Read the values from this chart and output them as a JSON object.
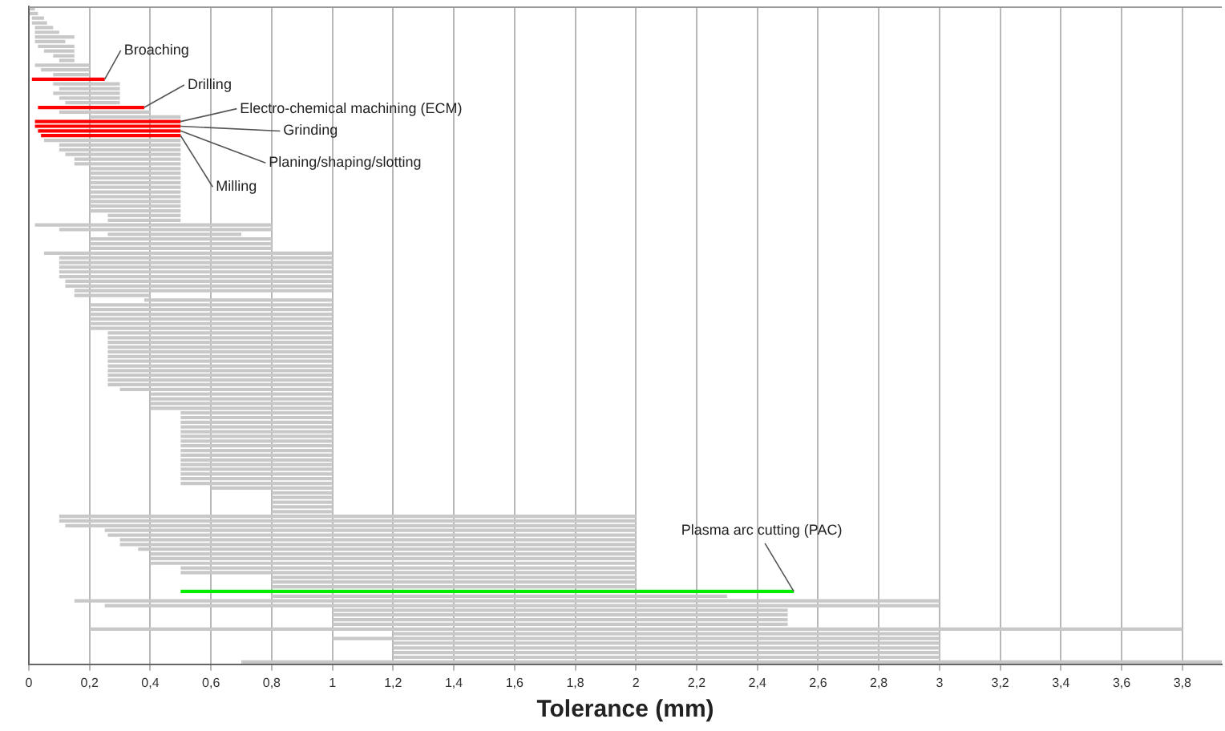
{
  "chart_data": {
    "type": "bar",
    "orientation": "horizontal",
    "xlabel": "Tolerance (mm)",
    "categories": [
      null,
      null,
      null,
      null,
      null,
      null,
      null,
      null,
      null,
      null,
      null,
      null,
      null,
      null,
      null,
      null,
      null,
      null,
      null,
      null,
      null,
      null,
      null,
      null,
      null,
      null,
      null,
      null,
      null,
      null,
      null,
      null,
      null,
      null,
      null,
      null,
      null,
      null,
      null,
      null,
      null,
      null,
      null,
      null,
      null,
      null,
      null,
      null,
      null,
      null,
      null,
      null,
      null,
      null,
      null,
      null,
      null,
      null,
      null,
      null,
      null,
      null,
      null,
      null,
      null,
      null,
      null,
      null,
      null,
      null,
      null,
      null,
      null,
      null,
      null,
      null,
      null,
      null,
      null,
      null,
      null,
      null,
      null,
      null,
      null,
      null,
      null,
      null,
      null,
      null,
      null,
      null,
      null,
      null,
      null,
      null,
      null,
      null,
      null,
      null,
      null,
      null,
      null,
      null,
      null,
      null,
      null,
      null,
      null,
      null,
      null,
      null,
      null,
      null,
      null,
      null,
      null,
      null,
      null,
      null,
      null,
      null,
      null,
      null,
      null,
      null,
      null,
      null,
      null,
      null,
      null,
      null,
      null,
      null,
      null,
      null,
      null,
      null,
      null,
      null
    ],
    "series": [
      {
        "color": "#c8c8c8",
        "base": [
          0,
          0,
          0.01,
          0.01,
          0.02,
          0.02,
          0.02,
          0.02,
          0.03,
          0.05,
          0.08,
          0.1,
          0.02,
          0.04,
          0.08,
          null,
          0.08,
          0.1,
          0.08,
          0.1,
          0.12,
          null,
          0.1,
          0.2,
          null,
          null,
          null,
          null,
          0.05,
          0.1,
          0.1,
          0.12,
          0.15,
          0.15,
          0.2,
          0.2,
          0.2,
          0.2,
          0.2,
          0.2,
          0.2,
          0.2,
          0.2,
          0.2,
          0.26,
          0.26,
          0.02,
          0.1,
          0.26,
          0.2,
          0.2,
          0.2,
          0.05,
          0.1,
          0.1,
          0.1,
          0.1,
          0.1,
          0.12,
          0.12,
          0.15,
          0.15,
          0.38,
          0.2,
          0.2,
          0.2,
          0.2,
          0.2,
          0.2,
          0.26,
          0.26,
          0.26,
          0.26,
          0.26,
          0.26,
          0.26,
          0.26,
          0.26,
          0.26,
          0.26,
          0.26,
          0.3,
          0.4,
          0.4,
          0.4,
          0.4,
          0.5,
          0.5,
          0.5,
          0.5,
          0.5,
          0.5,
          0.5,
          0.5,
          0.5,
          0.5,
          0.5,
          0.5,
          0.5,
          0.5,
          0.5,
          0.5,
          0.6,
          0.8,
          0.8,
          0.8,
          0.8,
          0.8,
          0.1,
          0.1,
          0.12,
          0.25,
          0.26,
          0.3,
          0.3,
          0.36,
          0.4,
          0.4,
          0.4,
          0.5,
          0.5,
          0.8,
          0.8,
          0.8,
          null,
          0.8,
          0.15,
          0.25,
          1,
          1,
          1,
          1,
          0.2,
          1.2,
          1,
          1.2,
          1.2,
          1.2,
          1.2,
          0.7
        ],
        "values": [
          0.02,
          0.03,
          0.04,
          0.05,
          0.06,
          0.08,
          0.13,
          0.1,
          0.12,
          0.1,
          0.07,
          0.05,
          0.18,
          0.16,
          0.12,
          null,
          0.22,
          0.2,
          0.22,
          0.2,
          0.18,
          null,
          0.3,
          0.3,
          null,
          null,
          null,
          null,
          0.45,
          0.4,
          0.4,
          0.38,
          0.35,
          0.35,
          0.3,
          0.3,
          0.3,
          0.3,
          0.3,
          0.3,
          0.3,
          0.3,
          0.3,
          0.3,
          0.24,
          0.24,
          0.78,
          0.7,
          0.44,
          0.6,
          0.6,
          0.6,
          0.95,
          0.9,
          0.9,
          0.9,
          0.9,
          0.9,
          0.88,
          0.88,
          0.85,
          0.25,
          0.62,
          0.8,
          0.8,
          0.8,
          0.8,
          0.8,
          0.8,
          0.74,
          0.74,
          0.74,
          0.74,
          0.74,
          0.74,
          0.74,
          0.74,
          0.74,
          0.74,
          0.74,
          0.74,
          0.7,
          0.6,
          0.6,
          0.6,
          0.6,
          0.5,
          0.5,
          0.5,
          0.5,
          0.5,
          0.5,
          0.5,
          0.5,
          0.5,
          0.5,
          0.5,
          0.5,
          0.5,
          0.5,
          0.5,
          0.5,
          0.4,
          0.2,
          0.2,
          0.2,
          0.2,
          0.2,
          1.9,
          1.9,
          1.88,
          1.75,
          1.74,
          1.7,
          1.7,
          1.64,
          1.6,
          1.6,
          1.6,
          1.5,
          1.5,
          1.2,
          1.2,
          1.2,
          null,
          1.5,
          2.85,
          2.75,
          1.5,
          1.5,
          1.5,
          1.5,
          3.6,
          1.8,
          2,
          1.8,
          1.8,
          1.8,
          1.8,
          3.23
        ]
      },
      {
        "name": "Broaching",
        "color": "#ff0000",
        "base": [
          null,
          null,
          null,
          null,
          null,
          null,
          null,
          null,
          null,
          null,
          null,
          null,
          null,
          null,
          null,
          0.01,
          null,
          null,
          null,
          null,
          null,
          null,
          null,
          null,
          null,
          null,
          null,
          null,
          null,
          null,
          null,
          null,
          null,
          null,
          null,
          null,
          null,
          null,
          null,
          null,
          null,
          null,
          null,
          null,
          null,
          null,
          null,
          null,
          null,
          null,
          null,
          null,
          null,
          null,
          null,
          null,
          null,
          null,
          null,
          null,
          null,
          null,
          null,
          null,
          null,
          null,
          null,
          null,
          null,
          null,
          null,
          null,
          null,
          null,
          null,
          null,
          null,
          null,
          null,
          null,
          null,
          null,
          null,
          null,
          null,
          null,
          null,
          null,
          null,
          null,
          null,
          null,
          null,
          null,
          null,
          null,
          null,
          null,
          null,
          null,
          null,
          null,
          null,
          null,
          null,
          null,
          null,
          null,
          null,
          null,
          null,
          null,
          null,
          null,
          null,
          null,
          null,
          null,
          null,
          null,
          null,
          null,
          null,
          null,
          null,
          null,
          null,
          null,
          null,
          null,
          null,
          null,
          null,
          null,
          null,
          null,
          null,
          null,
          null,
          null
        ],
        "values": [
          null,
          null,
          null,
          null,
          null,
          null,
          null,
          null,
          null,
          null,
          null,
          null,
          null,
          null,
          null,
          0.24,
          null,
          null,
          null,
          null,
          null,
          null,
          null,
          null,
          null,
          null,
          null,
          null,
          null,
          null,
          null,
          null,
          null,
          null,
          null,
          null,
          null,
          null,
          null,
          null,
          null,
          null,
          null,
          null,
          null,
          null,
          null,
          null,
          null,
          null,
          null,
          null,
          null,
          null,
          null,
          null,
          null,
          null,
          null,
          null,
          null,
          null,
          null,
          null,
          null,
          null,
          null,
          null,
          null,
          null,
          null,
          null,
          null,
          null,
          null,
          null,
          null,
          null,
          null,
          null,
          null,
          null,
          null,
          null,
          null,
          null,
          null,
          null,
          null,
          null,
          null,
          null,
          null,
          null,
          null,
          null,
          null,
          null,
          null,
          null,
          null,
          null,
          null,
          null,
          null,
          null,
          null,
          null,
          null,
          null,
          null,
          null,
          null,
          null,
          null,
          null,
          null,
          null,
          null,
          null,
          null,
          null,
          null,
          null,
          null,
          null,
          null,
          null,
          null,
          null,
          null,
          null,
          null,
          null,
          null,
          null,
          null,
          null,
          null,
          null
        ]
      },
      {
        "name": "Drilling",
        "color": "#ff0000",
        "base": [
          null,
          null,
          null,
          null,
          null,
          null,
          null,
          null,
          null,
          null,
          null,
          null,
          null,
          null,
          null,
          null,
          null,
          null,
          null,
          null,
          null,
          0.03,
          null,
          null,
          null,
          null,
          null,
          null,
          null,
          null,
          null,
          null,
          null,
          null,
          null,
          null,
          null,
          null,
          null,
          null,
          null,
          null,
          null,
          null,
          null,
          null,
          null,
          null,
          null,
          null,
          null,
          null,
          null,
          null,
          null,
          null,
          null,
          null,
          null,
          null,
          null,
          null,
          null,
          null,
          null,
          null,
          null,
          null,
          null,
          null,
          null,
          null,
          null,
          null,
          null,
          null,
          null,
          null,
          null,
          null,
          null,
          null,
          null,
          null,
          null,
          null,
          null,
          null,
          null,
          null,
          null,
          null,
          null,
          null,
          null,
          null,
          null,
          null,
          null,
          null,
          null,
          null,
          null,
          null,
          null,
          null,
          null,
          null,
          null,
          null,
          null,
          null,
          null,
          null,
          null,
          null,
          null,
          null,
          null,
          null,
          null,
          null,
          null,
          null,
          null,
          null,
          null,
          null,
          null,
          null,
          null,
          null,
          null,
          null,
          null,
          null,
          null,
          null,
          null,
          null
        ],
        "values": [
          null,
          null,
          null,
          null,
          null,
          null,
          null,
          null,
          null,
          null,
          null,
          null,
          null,
          null,
          null,
          null,
          null,
          null,
          null,
          null,
          null,
          0.35,
          null,
          null,
          null,
          null,
          null,
          null,
          null,
          null,
          null,
          null,
          null,
          null,
          null,
          null,
          null,
          null,
          null,
          null,
          null,
          null,
          null,
          null,
          null,
          null,
          null,
          null,
          null,
          null,
          null,
          null,
          null,
          null,
          null,
          null,
          null,
          null,
          null,
          null,
          null,
          null,
          null,
          null,
          null,
          null,
          null,
          null,
          null,
          null,
          null,
          null,
          null,
          null,
          null,
          null,
          null,
          null,
          null,
          null,
          null,
          null,
          null,
          null,
          null,
          null,
          null,
          null,
          null,
          null,
          null,
          null,
          null,
          null,
          null,
          null,
          null,
          null,
          null,
          null,
          null,
          null,
          null,
          null,
          null,
          null,
          null,
          null,
          null,
          null,
          null,
          null,
          null,
          null,
          null,
          null,
          null,
          null,
          null,
          null,
          null,
          null,
          null,
          null,
          null,
          null,
          null,
          null,
          null,
          null,
          null,
          null,
          null,
          null,
          null,
          null,
          null,
          null,
          null,
          null
        ]
      },
      {
        "name": "Electro-chemical machining (ECM)",
        "color": "#ff0000",
        "base": [
          null,
          null,
          null,
          null,
          null,
          null,
          null,
          null,
          null,
          null,
          null,
          null,
          null,
          null,
          null,
          null,
          null,
          null,
          null,
          null,
          null,
          null,
          null,
          null,
          0.02,
          null,
          null,
          null,
          null,
          null,
          null,
          null,
          null,
          null,
          null,
          null,
          null,
          null,
          null,
          null,
          null,
          null,
          null,
          null,
          null,
          null,
          null,
          null,
          null,
          null,
          null,
          null,
          null,
          null,
          null,
          null,
          null,
          null,
          null,
          null,
          null,
          null,
          null,
          null,
          null,
          null,
          null,
          null,
          null,
          null,
          null,
          null,
          null,
          null,
          null,
          null,
          null,
          null,
          null,
          null,
          null,
          null,
          null,
          null,
          null,
          null,
          null,
          null,
          null,
          null,
          null,
          null,
          null,
          null,
          null,
          null,
          null,
          null,
          null,
          null,
          null,
          null,
          null,
          null,
          null,
          null,
          null,
          null,
          null,
          null,
          null,
          null,
          null,
          null,
          null,
          null,
          null,
          null,
          null,
          null,
          null,
          null,
          null,
          null,
          null,
          null,
          null,
          null,
          null,
          null,
          null,
          null,
          null,
          null,
          null,
          null,
          null,
          null,
          null,
          null
        ],
        "values": [
          null,
          null,
          null,
          null,
          null,
          null,
          null,
          null,
          null,
          null,
          null,
          null,
          null,
          null,
          null,
          null,
          null,
          null,
          null,
          null,
          null,
          null,
          null,
          null,
          0.48,
          null,
          null,
          null,
          null,
          null,
          null,
          null,
          null,
          null,
          null,
          null,
          null,
          null,
          null,
          null,
          null,
          null,
          null,
          null,
          null,
          null,
          null,
          null,
          null,
          null,
          null,
          null,
          null,
          null,
          null,
          null,
          null,
          null,
          null,
          null,
          null,
          null,
          null,
          null,
          null,
          null,
          null,
          null,
          null,
          null,
          null,
          null,
          null,
          null,
          null,
          null,
          null,
          null,
          null,
          null,
          null,
          null,
          null,
          null,
          null,
          null,
          null,
          null,
          null,
          null,
          null,
          null,
          null,
          null,
          null,
          null,
          null,
          null,
          null,
          null,
          null,
          null,
          null,
          null,
          null,
          null,
          null,
          null,
          null,
          null,
          null,
          null,
          null,
          null,
          null,
          null,
          null,
          null,
          null,
          null,
          null,
          null,
          null,
          null,
          null,
          null,
          null,
          null,
          null,
          null,
          null,
          null,
          null,
          null,
          null,
          null,
          null,
          null,
          null,
          null
        ]
      },
      {
        "name": "Grinding",
        "color": "#ff0000",
        "base": [
          null,
          null,
          null,
          null,
          null,
          null,
          null,
          null,
          null,
          null,
          null,
          null,
          null,
          null,
          null,
          null,
          null,
          null,
          null,
          null,
          null,
          null,
          null,
          null,
          null,
          0.02,
          null,
          null,
          null,
          null,
          null,
          null,
          null,
          null,
          null,
          null,
          null,
          null,
          null,
          null,
          null,
          null,
          null,
          null,
          null,
          null,
          null,
          null,
          null,
          null,
          null,
          null,
          null,
          null,
          null,
          null,
          null,
          null,
          null,
          null,
          null,
          null,
          null,
          null,
          null,
          null,
          null,
          null,
          null,
          null,
          null,
          null,
          null,
          null,
          null,
          null,
          null,
          null,
          null,
          null,
          null,
          null,
          null,
          null,
          null,
          null,
          null,
          null,
          null,
          null,
          null,
          null,
          null,
          null,
          null,
          null,
          null,
          null,
          null,
          null,
          null,
          null,
          null,
          null,
          null,
          null,
          null,
          null,
          null,
          null,
          null,
          null,
          null,
          null,
          null,
          null,
          null,
          null,
          null,
          null,
          null,
          null,
          null,
          null,
          null,
          null,
          null,
          null,
          null,
          null,
          null,
          null,
          null,
          null,
          null,
          null,
          null,
          null,
          null,
          null
        ],
        "values": [
          null,
          null,
          null,
          null,
          null,
          null,
          null,
          null,
          null,
          null,
          null,
          null,
          null,
          null,
          null,
          null,
          null,
          null,
          null,
          null,
          null,
          null,
          null,
          null,
          null,
          0.48,
          null,
          null,
          null,
          null,
          null,
          null,
          null,
          null,
          null,
          null,
          null,
          null,
          null,
          null,
          null,
          null,
          null,
          null,
          null,
          null,
          null,
          null,
          null,
          null,
          null,
          null,
          null,
          null,
          null,
          null,
          null,
          null,
          null,
          null,
          null,
          null,
          null,
          null,
          null,
          null,
          null,
          null,
          null,
          null,
          null,
          null,
          null,
          null,
          null,
          null,
          null,
          null,
          null,
          null,
          null,
          null,
          null,
          null,
          null,
          null,
          null,
          null,
          null,
          null,
          null,
          null,
          null,
          null,
          null,
          null,
          null,
          null,
          null,
          null,
          null,
          null,
          null,
          null,
          null,
          null,
          null,
          null,
          null,
          null,
          null,
          null,
          null,
          null,
          null,
          null,
          null,
          null,
          null,
          null,
          null,
          null,
          null,
          null,
          null,
          null,
          null,
          null,
          null,
          null,
          null,
          null,
          null,
          null,
          null,
          null,
          null,
          null,
          null,
          null
        ]
      },
      {
        "name": "Planing/shaping/slotting",
        "color": "#ff0000",
        "base": [
          null,
          null,
          null,
          null,
          null,
          null,
          null,
          null,
          null,
          null,
          null,
          null,
          null,
          null,
          null,
          null,
          null,
          null,
          null,
          null,
          null,
          null,
          null,
          null,
          null,
          null,
          0.03,
          null,
          null,
          null,
          null,
          null,
          null,
          null,
          null,
          null,
          null,
          null,
          null,
          null,
          null,
          null,
          null,
          null,
          null,
          null,
          null,
          null,
          null,
          null,
          null,
          null,
          null,
          null,
          null,
          null,
          null,
          null,
          null,
          null,
          null,
          null,
          null,
          null,
          null,
          null,
          null,
          null,
          null,
          null,
          null,
          null,
          null,
          null,
          null,
          null,
          null,
          null,
          null,
          null,
          null,
          null,
          null,
          null,
          null,
          null,
          null,
          null,
          null,
          null,
          null,
          null,
          null,
          null,
          null,
          null,
          null,
          null,
          null,
          null,
          null,
          null,
          null,
          null,
          null,
          null,
          null,
          null,
          null,
          null,
          null,
          null,
          null,
          null,
          null,
          null,
          null,
          null,
          null,
          null,
          null,
          null,
          null,
          null,
          null,
          null,
          null,
          null,
          null,
          null,
          null,
          null,
          null,
          null,
          null,
          null,
          null,
          null,
          null,
          null
        ],
        "values": [
          null,
          null,
          null,
          null,
          null,
          null,
          null,
          null,
          null,
          null,
          null,
          null,
          null,
          null,
          null,
          null,
          null,
          null,
          null,
          null,
          null,
          null,
          null,
          null,
          null,
          null,
          0.47,
          null,
          null,
          null,
          null,
          null,
          null,
          null,
          null,
          null,
          null,
          null,
          null,
          null,
          null,
          null,
          null,
          null,
          null,
          null,
          null,
          null,
          null,
          null,
          null,
          null,
          null,
          null,
          null,
          null,
          null,
          null,
          null,
          null,
          null,
          null,
          null,
          null,
          null,
          null,
          null,
          null,
          null,
          null,
          null,
          null,
          null,
          null,
          null,
          null,
          null,
          null,
          null,
          null,
          null,
          null,
          null,
          null,
          null,
          null,
          null,
          null,
          null,
          null,
          null,
          null,
          null,
          null,
          null,
          null,
          null,
          null,
          null,
          null,
          null,
          null,
          null,
          null,
          null,
          null,
          null,
          null,
          null,
          null,
          null,
          null,
          null,
          null,
          null,
          null,
          null,
          null,
          null,
          null,
          null,
          null,
          null,
          null,
          null,
          null,
          null,
          null,
          null,
          null,
          null,
          null,
          null,
          null,
          null,
          null,
          null,
          null,
          null,
          null
        ]
      },
      {
        "name": "Milling",
        "color": "#ff0000",
        "base": [
          null,
          null,
          null,
          null,
          null,
          null,
          null,
          null,
          null,
          null,
          null,
          null,
          null,
          null,
          null,
          null,
          null,
          null,
          null,
          null,
          null,
          null,
          null,
          null,
          null,
          null,
          null,
          0.04,
          null,
          null,
          null,
          null,
          null,
          null,
          null,
          null,
          null,
          null,
          null,
          null,
          null,
          null,
          null,
          null,
          null,
          null,
          null,
          null,
          null,
          null,
          null,
          null,
          null,
          null,
          null,
          null,
          null,
          null,
          null,
          null,
          null,
          null,
          null,
          null,
          null,
          null,
          null,
          null,
          null,
          null,
          null,
          null,
          null,
          null,
          null,
          null,
          null,
          null,
          null,
          null,
          null,
          null,
          null,
          null,
          null,
          null,
          null,
          null,
          null,
          null,
          null,
          null,
          null,
          null,
          null,
          null,
          null,
          null,
          null,
          null,
          null,
          null,
          null,
          null,
          null,
          null,
          null,
          null,
          null,
          null,
          null,
          null,
          null,
          null,
          null,
          null,
          null,
          null,
          null,
          null,
          null,
          null,
          null,
          null,
          null,
          null,
          null,
          null,
          null,
          null,
          null,
          null,
          null,
          null,
          null,
          null,
          null,
          null,
          null,
          null
        ],
        "values": [
          null,
          null,
          null,
          null,
          null,
          null,
          null,
          null,
          null,
          null,
          null,
          null,
          null,
          null,
          null,
          null,
          null,
          null,
          null,
          null,
          null,
          null,
          null,
          null,
          null,
          null,
          null,
          0.46,
          null,
          null,
          null,
          null,
          null,
          null,
          null,
          null,
          null,
          null,
          null,
          null,
          null,
          null,
          null,
          null,
          null,
          null,
          null,
          null,
          null,
          null,
          null,
          null,
          null,
          null,
          null,
          null,
          null,
          null,
          null,
          null,
          null,
          null,
          null,
          null,
          null,
          null,
          null,
          null,
          null,
          null,
          null,
          null,
          null,
          null,
          null,
          null,
          null,
          null,
          null,
          null,
          null,
          null,
          null,
          null,
          null,
          null,
          null,
          null,
          null,
          null,
          null,
          null,
          null,
          null,
          null,
          null,
          null,
          null,
          null,
          null,
          null,
          null,
          null,
          null,
          null,
          null,
          null,
          null,
          null,
          null,
          null,
          null,
          null,
          null,
          null,
          null,
          null,
          null,
          null,
          null,
          null,
          null,
          null,
          null,
          null,
          null,
          null,
          null,
          null,
          null,
          null,
          null,
          null,
          null,
          null,
          null,
          null,
          null,
          null,
          null
        ]
      },
      {
        "name": "Plasma arc cutting (PAC)",
        "color": "#00ee00",
        "base": [
          null,
          null,
          null,
          null,
          null,
          null,
          null,
          null,
          null,
          null,
          null,
          null,
          null,
          null,
          null,
          null,
          null,
          null,
          null,
          null,
          null,
          null,
          null,
          null,
          null,
          null,
          null,
          null,
          null,
          null,
          null,
          null,
          null,
          null,
          null,
          null,
          null,
          null,
          null,
          null,
          null,
          null,
          null,
          null,
          null,
          null,
          null,
          null,
          null,
          null,
          null,
          null,
          null,
          null,
          null,
          null,
          null,
          null,
          null,
          null,
          null,
          null,
          null,
          null,
          null,
          null,
          null,
          null,
          null,
          null,
          null,
          null,
          null,
          null,
          null,
          null,
          null,
          null,
          null,
          null,
          null,
          null,
          null,
          null,
          null,
          null,
          null,
          null,
          null,
          null,
          null,
          null,
          null,
          null,
          null,
          null,
          null,
          null,
          null,
          null,
          null,
          null,
          null,
          null,
          null,
          null,
          null,
          null,
          null,
          null,
          null,
          null,
          null,
          null,
          null,
          null,
          null,
          null,
          null,
          null,
          null,
          null,
          null,
          null,
          0.5,
          null,
          null,
          null,
          null,
          null,
          null,
          null,
          null,
          null,
          null,
          null,
          null,
          null,
          null,
          null
        ],
        "values": [
          null,
          null,
          null,
          null,
          null,
          null,
          null,
          null,
          null,
          null,
          null,
          null,
          null,
          null,
          null,
          null,
          null,
          null,
          null,
          null,
          null,
          null,
          null,
          null,
          null,
          null,
          null,
          null,
          null,
          null,
          null,
          null,
          null,
          null,
          null,
          null,
          null,
          null,
          null,
          null,
          null,
          null,
          null,
          null,
          null,
          null,
          null,
          null,
          null,
          null,
          null,
          null,
          null,
          null,
          null,
          null,
          null,
          null,
          null,
          null,
          null,
          null,
          null,
          null,
          null,
          null,
          null,
          null,
          null,
          null,
          null,
          null,
          null,
          null,
          null,
          null,
          null,
          null,
          null,
          null,
          null,
          null,
          null,
          null,
          null,
          null,
          null,
          null,
          null,
          null,
          null,
          null,
          null,
          null,
          null,
          null,
          null,
          null,
          null,
          null,
          null,
          null,
          null,
          null,
          null,
          null,
          null,
          null,
          null,
          null,
          null,
          null,
          null,
          null,
          null,
          null,
          null,
          null,
          null,
          null,
          null,
          null,
          null,
          null,
          2.02,
          null,
          null,
          null,
          null,
          null,
          null,
          null,
          null,
          null,
          null,
          null,
          null,
          null,
          null,
          null
        ]
      }
    ],
    "xlim": [
      0,
      3.93
    ],
    "xticks": [
      0,
      {
        "value": 0.2,
        "label": "0,2"
      },
      {
        "value": 0.4,
        "label": "0,4"
      },
      {
        "value": 0.6,
        "label": "0,6"
      },
      {
        "value": 0.8,
        "label": "0,8"
      },
      1,
      {
        "value": 1.2,
        "label": "1,2"
      },
      {
        "value": 1.4,
        "label": "1,4"
      },
      {
        "value": 1.6,
        "label": "1,6"
      },
      {
        "value": 1.8,
        "label": "1,8"
      },
      2,
      {
        "value": 2.2,
        "label": "2,2"
      },
      {
        "value": 2.4,
        "label": "2,4"
      },
      {
        "value": 2.6,
        "label": "2,6"
      },
      {
        "value": 2.8,
        "label": "2,8"
      },
      3,
      {
        "value": 3.2,
        "label": "3,2"
      },
      {
        "value": 3.4,
        "label": "3,4"
      },
      {
        "value": 3.6,
        "label": "3,6"
      },
      {
        "value": 3.8,
        "label": "3,8"
      }
    ],
    "grid": "x"
  }
}
